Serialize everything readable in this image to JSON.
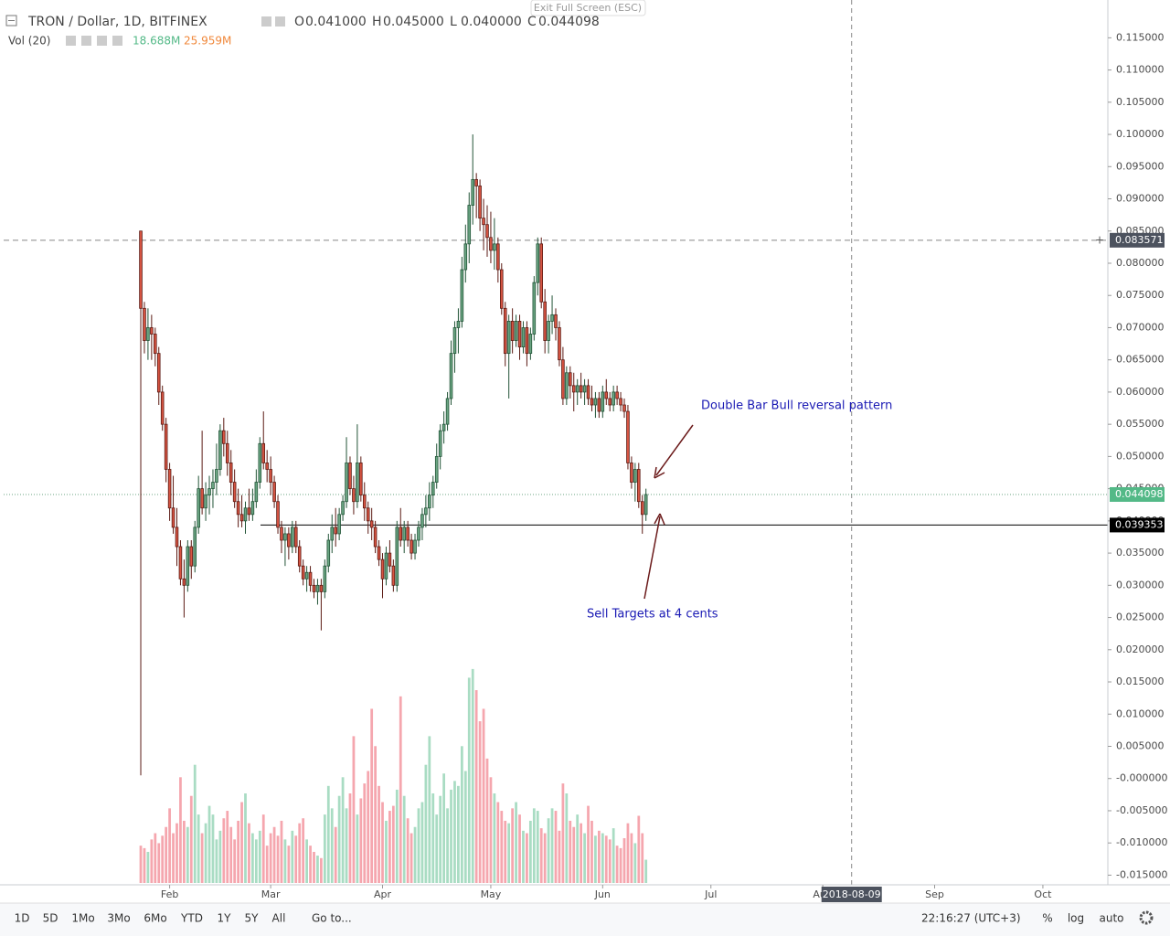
{
  "header": {
    "title": "TRON / Dollar, 1D, BITFINEX",
    "ohlc": [
      {
        "k": "O",
        "v": "0.041000"
      },
      {
        "k": "H",
        "v": "0.045000"
      },
      {
        "k": "L",
        "v": "0.040000"
      },
      {
        "k": "C",
        "v": "0.044098"
      }
    ],
    "vol_title": "Vol (20)",
    "vol_values": [
      "18.688M",
      "25.959M"
    ],
    "exit": "Exit Full Screen (ESC)"
  },
  "toolbar": {
    "ranges": [
      "1D",
      "5D",
      "1Mo",
      "3Mo",
      "6Mo",
      "YTD",
      "1Y",
      "5Y",
      "All"
    ],
    "goto": "Go to...",
    "clock": "22:16:27 (UTC+3)",
    "options": [
      "%",
      "log",
      "auto"
    ]
  },
  "chart_data": {
    "type": "candlestick",
    "annotations": [
      "Double Bar Bull reversal pattern",
      "Sell Targets at 4 cents"
    ],
    "crosshair": {
      "value": 221,
      "label": "2018-08-09"
    },
    "price_lines": [
      {
        "value": 0.083571,
        "label": "0.083571"
      },
      {
        "value": 0.044098,
        "label": "0.044098"
      },
      {
        "value": 0.039353,
        "label": "0.039353"
      }
    ],
    "xlim": [
      -14,
      292
    ],
    "xticks": [
      {
        "value": 32,
        "label": "Feb"
      },
      {
        "value": 60,
        "label": "Mar"
      },
      {
        "value": 91,
        "label": "Apr"
      },
      {
        "value": 121,
        "label": "May"
      },
      {
        "value": 152,
        "label": "Jun"
      },
      {
        "value": 182,
        "label": "Jul"
      },
      {
        "value": 213,
        "label": "Aug"
      },
      {
        "value": 244,
        "label": "Sep"
      },
      {
        "value": 274,
        "label": "Oct"
      }
    ],
    "ylim": [
      -0.0165,
      0.1203
    ],
    "yticks": [
      {
        "value": 0.115,
        "label": "0.115000"
      },
      {
        "value": 0.11,
        "label": "0.110000"
      },
      {
        "value": 0.105,
        "label": "0.105000"
      },
      {
        "value": 0.1,
        "label": "0.100000"
      },
      {
        "value": 0.095,
        "label": "0.095000"
      },
      {
        "value": 0.09,
        "label": "0.090000"
      },
      {
        "value": 0.085,
        "label": "0.085000"
      },
      {
        "value": 0.08,
        "label": "0.080000"
      },
      {
        "value": 0.075,
        "label": "0.075000"
      },
      {
        "value": 0.07,
        "label": "0.070000"
      },
      {
        "value": 0.065,
        "label": "0.065000"
      },
      {
        "value": 0.06,
        "label": "0.060000"
      },
      {
        "value": 0.055,
        "label": "0.055000"
      },
      {
        "value": 0.05,
        "label": "0.050000"
      },
      {
        "value": 0.045,
        "label": "0.045000"
      },
      {
        "value": 0.04,
        "label": "0.040000"
      },
      {
        "value": 0.035,
        "label": "0.035000"
      },
      {
        "value": 0.03,
        "label": "0.030000"
      },
      {
        "value": 0.025,
        "label": "0.025000"
      },
      {
        "value": 0.02,
        "label": "0.020000"
      },
      {
        "value": 0.015,
        "label": "0.015000"
      },
      {
        "value": 0.01,
        "label": "0.010000"
      },
      {
        "value": 0.005,
        "label": "0.005000"
      },
      {
        "value": 0,
        "label": "-0.000000"
      },
      {
        "value": -0.005,
        "label": "-0.005000"
      },
      {
        "value": -0.01,
        "label": "-0.010000"
      },
      {
        "value": -0.015,
        "label": "-0.015000"
      }
    ],
    "grid": true,
    "up_color": "#6ba583",
    "down_color": "#d75442",
    "volume_lim": [
      0,
      180
    ],
    "x": [
      24,
      25,
      26,
      27,
      28,
      29,
      30,
      31,
      32,
      33,
      34,
      35,
      36,
      37,
      38,
      39,
      40,
      41,
      42,
      43,
      44,
      45,
      46,
      47,
      48,
      49,
      50,
      51,
      52,
      53,
      54,
      55,
      56,
      57,
      58,
      59,
      60,
      61,
      62,
      63,
      64,
      65,
      66,
      67,
      68,
      69,
      70,
      71,
      72,
      73,
      74,
      75,
      76,
      77,
      78,
      79,
      80,
      81,
      82,
      83,
      84,
      85,
      86,
      87,
      88,
      89,
      90,
      91,
      92,
      93,
      94,
      95,
      96,
      97,
      98,
      99,
      100,
      101,
      102,
      103,
      104,
      105,
      106,
      107,
      108,
      109,
      110,
      111,
      112,
      113,
      114,
      115,
      116,
      117,
      118,
      119,
      120,
      121,
      122,
      123,
      124,
      125,
      126,
      127,
      128,
      129,
      130,
      131,
      132,
      133,
      134,
      135,
      136,
      137,
      138,
      139,
      140,
      141,
      142,
      143,
      144,
      145,
      146,
      147,
      148,
      149,
      150,
      151,
      152,
      153,
      154,
      155,
      156,
      157,
      158,
      159,
      160,
      161,
      162,
      163,
      164
    ],
    "candles": [
      [
        0.085,
        0.085,
        0.0005,
        0.073
      ],
      [
        0.073,
        0.074,
        0.066,
        0.068
      ],
      [
        0.068,
        0.073,
        0.065,
        0.07
      ],
      [
        0.07,
        0.072,
        0.065,
        0.069
      ],
      [
        0.069,
        0.07,
        0.064,
        0.066
      ],
      [
        0.066,
        0.067,
        0.058,
        0.06
      ],
      [
        0.06,
        0.061,
        0.054,
        0.055
      ],
      [
        0.055,
        0.056,
        0.046,
        0.048
      ],
      [
        0.048,
        0.049,
        0.04,
        0.042
      ],
      [
        0.042,
        0.047,
        0.038,
        0.039
      ],
      [
        0.039,
        0.042,
        0.033,
        0.036
      ],
      [
        0.036,
        0.037,
        0.03,
        0.031
      ],
      [
        0.031,
        0.034,
        0.025,
        0.03
      ],
      [
        0.03,
        0.037,
        0.029,
        0.036
      ],
      [
        0.036,
        0.037,
        0.031,
        0.033
      ],
      [
        0.033,
        0.04,
        0.032,
        0.039
      ],
      [
        0.039,
        0.047,
        0.038,
        0.045
      ],
      [
        0.045,
        0.054,
        0.041,
        0.042
      ],
      [
        0.042,
        0.046,
        0.04,
        0.044
      ],
      [
        0.044,
        0.047,
        0.041,
        0.045
      ],
      [
        0.045,
        0.048,
        0.042,
        0.046
      ],
      [
        0.046,
        0.052,
        0.044,
        0.048
      ],
      [
        0.048,
        0.055,
        0.047,
        0.054
      ],
      [
        0.054,
        0.056,
        0.05,
        0.052
      ],
      [
        0.052,
        0.054,
        0.047,
        0.049
      ],
      [
        0.049,
        0.051,
        0.044,
        0.046
      ],
      [
        0.046,
        0.048,
        0.042,
        0.043
      ],
      [
        0.043,
        0.045,
        0.039,
        0.041
      ],
      [
        0.041,
        0.044,
        0.039,
        0.04
      ],
      [
        0.04,
        0.043,
        0.038,
        0.042
      ],
      [
        0.042,
        0.045,
        0.04,
        0.041
      ],
      [
        0.041,
        0.045,
        0.04,
        0.043
      ],
      [
        0.043,
        0.048,
        0.042,
        0.046
      ],
      [
        0.046,
        0.053,
        0.045,
        0.052
      ],
      [
        0.052,
        0.057,
        0.048,
        0.049
      ],
      [
        0.049,
        0.051,
        0.046,
        0.048
      ],
      [
        0.048,
        0.05,
        0.044,
        0.046
      ],
      [
        0.046,
        0.047,
        0.042,
        0.043
      ],
      [
        0.043,
        0.044,
        0.038,
        0.039
      ],
      [
        0.039,
        0.04,
        0.035,
        0.037
      ],
      [
        0.037,
        0.039,
        0.033,
        0.038
      ],
      [
        0.038,
        0.039,
        0.034,
        0.036
      ],
      [
        0.036,
        0.04,
        0.035,
        0.039
      ],
      [
        0.039,
        0.04,
        0.035,
        0.036
      ],
      [
        0.036,
        0.037,
        0.032,
        0.033
      ],
      [
        0.033,
        0.034,
        0.03,
        0.031
      ],
      [
        0.031,
        0.033,
        0.029,
        0.032
      ],
      [
        0.032,
        0.033,
        0.029,
        0.03
      ],
      [
        0.03,
        0.031,
        0.028,
        0.029
      ],
      [
        0.029,
        0.031,
        0.027,
        0.03
      ],
      [
        0.03,
        0.031,
        0.023,
        0.029
      ],
      [
        0.029,
        0.034,
        0.028,
        0.033
      ],
      [
        0.033,
        0.038,
        0.032,
        0.037
      ],
      [
        0.037,
        0.041,
        0.035,
        0.039
      ],
      [
        0.039,
        0.042,
        0.036,
        0.038
      ],
      [
        0.038,
        0.042,
        0.037,
        0.041
      ],
      [
        0.041,
        0.044,
        0.04,
        0.043
      ],
      [
        0.043,
        0.053,
        0.042,
        0.049
      ],
      [
        0.049,
        0.05,
        0.044,
        0.045
      ],
      [
        0.045,
        0.047,
        0.041,
        0.043
      ],
      [
        0.043,
        0.055,
        0.042,
        0.049
      ],
      [
        0.049,
        0.05,
        0.043,
        0.044
      ],
      [
        0.044,
        0.046,
        0.04,
        0.042
      ],
      [
        0.042,
        0.043,
        0.038,
        0.04
      ],
      [
        0.04,
        0.042,
        0.037,
        0.039
      ],
      [
        0.039,
        0.04,
        0.035,
        0.036
      ],
      [
        0.036,
        0.037,
        0.033,
        0.034
      ],
      [
        0.034,
        0.035,
        0.028,
        0.031
      ],
      [
        0.031,
        0.036,
        0.03,
        0.035
      ],
      [
        0.035,
        0.037,
        0.032,
        0.033
      ],
      [
        0.033,
        0.034,
        0.029,
        0.03
      ],
      [
        0.03,
        0.04,
        0.029,
        0.039
      ],
      [
        0.039,
        0.042,
        0.036,
        0.037
      ],
      [
        0.037,
        0.04,
        0.035,
        0.039
      ],
      [
        0.039,
        0.04,
        0.036,
        0.037
      ],
      [
        0.037,
        0.038,
        0.034,
        0.035
      ],
      [
        0.035,
        0.038,
        0.034,
        0.037
      ],
      [
        0.037,
        0.04,
        0.036,
        0.039
      ],
      [
        0.039,
        0.042,
        0.037,
        0.041
      ],
      [
        0.041,
        0.044,
        0.039,
        0.042
      ],
      [
        0.042,
        0.046,
        0.04,
        0.044
      ],
      [
        0.044,
        0.047,
        0.042,
        0.046
      ],
      [
        0.046,
        0.052,
        0.045,
        0.05
      ],
      [
        0.05,
        0.055,
        0.048,
        0.054
      ],
      [
        0.054,
        0.057,
        0.052,
        0.055
      ],
      [
        0.055,
        0.06,
        0.054,
        0.059
      ],
      [
        0.059,
        0.068,
        0.058,
        0.066
      ],
      [
        0.066,
        0.071,
        0.063,
        0.07
      ],
      [
        0.07,
        0.073,
        0.066,
        0.071
      ],
      [
        0.071,
        0.081,
        0.07,
        0.079
      ],
      [
        0.079,
        0.086,
        0.077,
        0.083
      ],
      [
        0.083,
        0.091,
        0.08,
        0.089
      ],
      [
        0.089,
        0.1,
        0.086,
        0.093
      ],
      [
        0.093,
        0.094,
        0.087,
        0.092
      ],
      [
        0.092,
        0.093,
        0.085,
        0.087
      ],
      [
        0.087,
        0.09,
        0.082,
        0.086
      ],
      [
        0.086,
        0.089,
        0.081,
        0.084
      ],
      [
        0.084,
        0.088,
        0.08,
        0.082
      ],
      [
        0.082,
        0.087,
        0.079,
        0.083
      ],
      [
        0.083,
        0.084,
        0.077,
        0.079
      ],
      [
        0.079,
        0.08,
        0.072,
        0.073
      ],
      [
        0.073,
        0.074,
        0.064,
        0.066
      ],
      [
        0.066,
        0.072,
        0.059,
        0.071
      ],
      [
        0.071,
        0.073,
        0.066,
        0.068
      ],
      [
        0.068,
        0.072,
        0.067,
        0.071
      ],
      [
        0.071,
        0.072,
        0.065,
        0.067
      ],
      [
        0.067,
        0.071,
        0.066,
        0.07
      ],
      [
        0.07,
        0.071,
        0.064,
        0.066
      ],
      [
        0.066,
        0.07,
        0.065,
        0.069
      ],
      [
        0.069,
        0.078,
        0.068,
        0.077
      ],
      [
        0.077,
        0.084,
        0.075,
        0.083
      ],
      [
        0.083,
        0.084,
        0.073,
        0.074
      ],
      [
        0.074,
        0.076,
        0.066,
        0.068
      ],
      [
        0.068,
        0.072,
        0.066,
        0.071
      ],
      [
        0.071,
        0.075,
        0.069,
        0.072
      ],
      [
        0.072,
        0.073,
        0.068,
        0.07
      ],
      [
        0.07,
        0.071,
        0.064,
        0.065
      ],
      [
        0.065,
        0.067,
        0.058,
        0.059
      ],
      [
        0.059,
        0.064,
        0.058,
        0.063
      ],
      [
        0.063,
        0.064,
        0.059,
        0.061
      ],
      [
        0.061,
        0.063,
        0.057,
        0.06
      ],
      [
        0.06,
        0.062,
        0.058,
        0.061
      ],
      [
        0.061,
        0.063,
        0.059,
        0.06
      ],
      [
        0.06,
        0.062,
        0.058,
        0.061
      ],
      [
        0.061,
        0.062,
        0.058,
        0.059
      ],
      [
        0.059,
        0.061,
        0.057,
        0.058
      ],
      [
        0.058,
        0.06,
        0.056,
        0.059
      ],
      [
        0.059,
        0.06,
        0.056,
        0.057
      ],
      [
        0.057,
        0.061,
        0.056,
        0.06
      ],
      [
        0.06,
        0.062,
        0.058,
        0.059
      ],
      [
        0.059,
        0.06,
        0.057,
        0.058
      ],
      [
        0.058,
        0.061,
        0.057,
        0.06
      ],
      [
        0.06,
        0.061,
        0.058,
        0.059
      ],
      [
        0.059,
        0.06,
        0.057,
        0.058
      ],
      [
        0.058,
        0.059,
        0.056,
        0.057
      ],
      [
        0.057,
        0.058,
        0.048,
        0.049
      ],
      [
        0.049,
        0.05,
        0.045,
        0.046
      ],
      [
        0.046,
        0.049,
        0.043,
        0.048
      ],
      [
        0.048,
        0.049,
        0.042,
        0.043
      ],
      [
        0.043,
        0.044,
        0.038,
        0.041
      ],
      [
        0.041,
        0.045,
        0.04,
        0.044098
      ]
    ],
    "volume": [
      30,
      28,
      25,
      35,
      40,
      32,
      38,
      45,
      60,
      40,
      48,
      85,
      50,
      45,
      70,
      95,
      55,
      40,
      48,
      62,
      55,
      35,
      42,
      52,
      58,
      45,
      35,
      50,
      65,
      72,
      48,
      40,
      35,
      42,
      55,
      30,
      40,
      45,
      38,
      50,
      35,
      30,
      42,
      38,
      48,
      52,
      35,
      30,
      25,
      22,
      20,
      55,
      78,
      60,
      45,
      70,
      85,
      60,
      72,
      118,
      55,
      68,
      80,
      90,
      140,
      110,
      78,
      65,
      50,
      58,
      62,
      75,
      150,
      70,
      52,
      40,
      45,
      60,
      65,
      95,
      118,
      72,
      55,
      70,
      88,
      60,
      75,
      82,
      78,
      110,
      90,
      165,
      172,
      155,
      130,
      140,
      100,
      85,
      72,
      65,
      58,
      50,
      48,
      60,
      65,
      55,
      42,
      40,
      50,
      60,
      58,
      44,
      40,
      52,
      60,
      58,
      42,
      80,
      72,
      50,
      45,
      55,
      48,
      40,
      62,
      50,
      38,
      42,
      40,
      38,
      35,
      44,
      30,
      28,
      36,
      48,
      40,
      32,
      54,
      40,
      18.688
    ]
  }
}
